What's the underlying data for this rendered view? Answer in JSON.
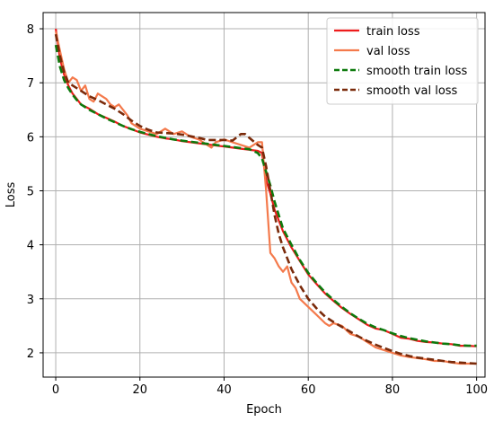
{
  "chart_data": {
    "type": "line",
    "title": "",
    "xlabel": "Epoch",
    "ylabel": "Loss",
    "xlim": [
      -3,
      102
    ],
    "ylim": [
      1.55,
      8.3
    ],
    "xticks": [
      0,
      20,
      40,
      60,
      80,
      100
    ],
    "yticks": [
      2,
      3,
      4,
      5,
      6,
      7,
      8
    ],
    "grid": true,
    "legend_position": "top-right",
    "series": [
      {
        "name": "train loss",
        "color": "#ee1c1c",
        "style": "solid",
        "points": [
          [
            0,
            8.0
          ],
          [
            1,
            7.45
          ],
          [
            2,
            7.15
          ],
          [
            3,
            6.95
          ],
          [
            4,
            6.8
          ],
          [
            5,
            6.7
          ],
          [
            6,
            6.6
          ],
          [
            8,
            6.52
          ],
          [
            10,
            6.42
          ],
          [
            12,
            6.35
          ],
          [
            14,
            6.28
          ],
          [
            16,
            6.2
          ],
          [
            18,
            6.14
          ],
          [
            20,
            6.08
          ],
          [
            22,
            6.04
          ],
          [
            24,
            6.0
          ],
          [
            26,
            5.97
          ],
          [
            28,
            5.95
          ],
          [
            30,
            5.92
          ],
          [
            32,
            5.9
          ],
          [
            34,
            5.88
          ],
          [
            36,
            5.86
          ],
          [
            38,
            5.84
          ],
          [
            40,
            5.82
          ],
          [
            42,
            5.8
          ],
          [
            44,
            5.78
          ],
          [
            46,
            5.76
          ],
          [
            48,
            5.74
          ],
          [
            49,
            5.7
          ],
          [
            50,
            5.2
          ],
          [
            51,
            4.95
          ],
          [
            52,
            4.65
          ],
          [
            53,
            4.45
          ],
          [
            54,
            4.25
          ],
          [
            56,
            3.95
          ],
          [
            58,
            3.7
          ],
          [
            60,
            3.45
          ],
          [
            62,
            3.27
          ],
          [
            64,
            3.1
          ],
          [
            66,
            2.96
          ],
          [
            68,
            2.83
          ],
          [
            70,
            2.72
          ],
          [
            72,
            2.62
          ],
          [
            74,
            2.52
          ],
          [
            76,
            2.45
          ],
          [
            78,
            2.42
          ],
          [
            80,
            2.35
          ],
          [
            82,
            2.28
          ],
          [
            84,
            2.26
          ],
          [
            86,
            2.22
          ],
          [
            88,
            2.2
          ],
          [
            90,
            2.19
          ],
          [
            92,
            2.17
          ],
          [
            94,
            2.16
          ],
          [
            96,
            2.13
          ],
          [
            98,
            2.13
          ],
          [
            100,
            2.12
          ]
        ]
      },
      {
        "name": "val loss",
        "color": "#f47a4c",
        "style": "solid",
        "points": [
          [
            0,
            7.95
          ],
          [
            1,
            7.6
          ],
          [
            2,
            7.25
          ],
          [
            3,
            7.0
          ],
          [
            4,
            7.1
          ],
          [
            5,
            7.05
          ],
          [
            6,
            6.85
          ],
          [
            7,
            6.95
          ],
          [
            8,
            6.7
          ],
          [
            9,
            6.65
          ],
          [
            10,
            6.8
          ],
          [
            11,
            6.75
          ],
          [
            12,
            6.7
          ],
          [
            13,
            6.6
          ],
          [
            14,
            6.55
          ],
          [
            15,
            6.6
          ],
          [
            16,
            6.5
          ],
          [
            17,
            6.4
          ],
          [
            18,
            6.25
          ],
          [
            19,
            6.2
          ],
          [
            20,
            6.15
          ],
          [
            22,
            6.1
          ],
          [
            24,
            6.05
          ],
          [
            26,
            6.15
          ],
          [
            28,
            6.05
          ],
          [
            30,
            6.1
          ],
          [
            32,
            6.0
          ],
          [
            34,
            5.95
          ],
          [
            36,
            5.85
          ],
          [
            37,
            5.8
          ],
          [
            38,
            5.9
          ],
          [
            40,
            5.95
          ],
          [
            42,
            5.9
          ],
          [
            44,
            5.85
          ],
          [
            46,
            5.8
          ],
          [
            47,
            5.85
          ],
          [
            48,
            5.9
          ],
          [
            49,
            5.9
          ],
          [
            50,
            5.0
          ],
          [
            51,
            3.85
          ],
          [
            52,
            3.75
          ],
          [
            53,
            3.6
          ],
          [
            54,
            3.5
          ],
          [
            55,
            3.6
          ],
          [
            56,
            3.3
          ],
          [
            57,
            3.2
          ],
          [
            58,
            3.0
          ],
          [
            60,
            2.85
          ],
          [
            62,
            2.7
          ],
          [
            64,
            2.55
          ],
          [
            65,
            2.5
          ],
          [
            66,
            2.55
          ],
          [
            68,
            2.5
          ],
          [
            70,
            2.35
          ],
          [
            72,
            2.3
          ],
          [
            74,
            2.2
          ],
          [
            76,
            2.1
          ],
          [
            78,
            2.05
          ],
          [
            80,
            2.0
          ],
          [
            82,
            1.95
          ],
          [
            84,
            1.92
          ],
          [
            86,
            1.9
          ],
          [
            88,
            1.88
          ],
          [
            90,
            1.85
          ],
          [
            92,
            1.85
          ],
          [
            94,
            1.82
          ],
          [
            96,
            1.8
          ],
          [
            98,
            1.8
          ],
          [
            100,
            1.8
          ]
        ]
      },
      {
        "name": "smooth train loss",
        "color": "#0d7a0d",
        "style": "dashed",
        "points": [
          [
            0,
            7.7
          ],
          [
            1,
            7.3
          ],
          [
            2,
            7.05
          ],
          [
            3,
            6.9
          ],
          [
            4,
            6.78
          ],
          [
            5,
            6.68
          ],
          [
            6,
            6.6
          ],
          [
            8,
            6.5
          ],
          [
            10,
            6.42
          ],
          [
            12,
            6.34
          ],
          [
            14,
            6.27
          ],
          [
            16,
            6.2
          ],
          [
            18,
            6.14
          ],
          [
            20,
            6.09
          ],
          [
            22,
            6.05
          ],
          [
            24,
            6.01
          ],
          [
            26,
            5.98
          ],
          [
            28,
            5.95
          ],
          [
            30,
            5.93
          ],
          [
            32,
            5.91
          ],
          [
            34,
            5.89
          ],
          [
            36,
            5.87
          ],
          [
            38,
            5.85
          ],
          [
            40,
            5.83
          ],
          [
            42,
            5.81
          ],
          [
            44,
            5.79
          ],
          [
            46,
            5.77
          ],
          [
            48,
            5.7
          ],
          [
            49,
            5.6
          ],
          [
            50,
            5.35
          ],
          [
            51,
            5.1
          ],
          [
            52,
            4.8
          ],
          [
            53,
            4.55
          ],
          [
            54,
            4.3
          ],
          [
            56,
            4.0
          ],
          [
            58,
            3.72
          ],
          [
            60,
            3.48
          ],
          [
            62,
            3.29
          ],
          [
            64,
            3.12
          ],
          [
            66,
            2.98
          ],
          [
            68,
            2.85
          ],
          [
            70,
            2.73
          ],
          [
            72,
            2.63
          ],
          [
            74,
            2.54
          ],
          [
            76,
            2.47
          ],
          [
            78,
            2.42
          ],
          [
            80,
            2.36
          ],
          [
            82,
            2.31
          ],
          [
            84,
            2.27
          ],
          [
            86,
            2.24
          ],
          [
            88,
            2.21
          ],
          [
            90,
            2.19
          ],
          [
            92,
            2.17
          ],
          [
            94,
            2.16
          ],
          [
            96,
            2.14
          ],
          [
            98,
            2.13
          ],
          [
            100,
            2.13
          ]
        ]
      },
      {
        "name": "smooth val loss",
        "color": "#7a2a0a",
        "style": "dashed",
        "points": [
          [
            0,
            7.9
          ],
          [
            1,
            7.5
          ],
          [
            2,
            7.2
          ],
          [
            3,
            7.0
          ],
          [
            4,
            6.95
          ],
          [
            5,
            6.9
          ],
          [
            6,
            6.85
          ],
          [
            8,
            6.75
          ],
          [
            10,
            6.68
          ],
          [
            12,
            6.6
          ],
          [
            14,
            6.52
          ],
          [
            16,
            6.42
          ],
          [
            18,
            6.3
          ],
          [
            20,
            6.2
          ],
          [
            22,
            6.13
          ],
          [
            24,
            6.08
          ],
          [
            26,
            6.07
          ],
          [
            28,
            6.06
          ],
          [
            30,
            6.04
          ],
          [
            32,
            6.01
          ],
          [
            34,
            5.98
          ],
          [
            36,
            5.94
          ],
          [
            38,
            5.94
          ],
          [
            40,
            5.94
          ],
          [
            42,
            5.93
          ],
          [
            44,
            6.05
          ],
          [
            45,
            6.05
          ],
          [
            46,
            5.98
          ],
          [
            48,
            5.85
          ],
          [
            49,
            5.8
          ],
          [
            50,
            5.45
          ],
          [
            51,
            5.0
          ],
          [
            52,
            4.55
          ],
          [
            53,
            4.2
          ],
          [
            54,
            3.95
          ],
          [
            56,
            3.55
          ],
          [
            58,
            3.25
          ],
          [
            60,
            3.0
          ],
          [
            62,
            2.82
          ],
          [
            64,
            2.67
          ],
          [
            66,
            2.57
          ],
          [
            68,
            2.48
          ],
          [
            70,
            2.39
          ],
          [
            72,
            2.3
          ],
          [
            74,
            2.22
          ],
          [
            76,
            2.15
          ],
          [
            78,
            2.09
          ],
          [
            80,
            2.03
          ],
          [
            82,
            1.98
          ],
          [
            84,
            1.94
          ],
          [
            86,
            1.91
          ],
          [
            88,
            1.89
          ],
          [
            90,
            1.87
          ],
          [
            92,
            1.85
          ],
          [
            94,
            1.83
          ],
          [
            96,
            1.82
          ],
          [
            98,
            1.81
          ],
          [
            100,
            1.8
          ]
        ]
      }
    ]
  }
}
